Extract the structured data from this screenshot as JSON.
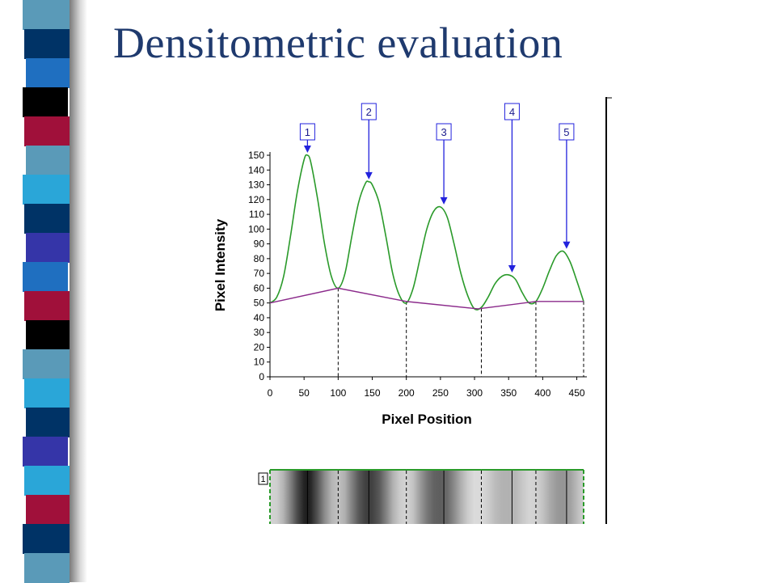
{
  "slide": {
    "title": "Densitometric evaluation"
  },
  "colors": {
    "title": "#1f3a6e",
    "profile_line": "#2a9a2a",
    "baseline_line": "#8b2a8b",
    "arrows": "#2222dd",
    "axis": "#000000"
  },
  "left_bar_colors": [
    "#5a9ab8",
    "#003366",
    "#1f6fc0",
    "#000000",
    "#a0103a",
    "#5a9ab8",
    "#2aa6d8",
    "#003366",
    "#3535a8",
    "#1f6fc0",
    "#a0103a",
    "#000000",
    "#5a9ab8",
    "#2aa6d8",
    "#003366",
    "#3535a8",
    "#2aa6d8",
    "#a0103a",
    "#003366",
    "#5a9ab8"
  ],
  "chart_data": {
    "type": "line",
    "title": "",
    "xlabel": "Pixel Position",
    "ylabel": "Pixel Intensity",
    "xlim": [
      0,
      460
    ],
    "ylim": [
      0,
      150
    ],
    "x_ticks": [
      0,
      50,
      100,
      150,
      200,
      250,
      300,
      350,
      400,
      450
    ],
    "y_ticks": [
      0,
      10,
      20,
      30,
      40,
      50,
      60,
      70,
      80,
      90,
      100,
      110,
      120,
      130,
      140,
      150
    ],
    "series": [
      {
        "role": "profile",
        "x": [
          0,
          10,
          20,
          30,
          40,
          50,
          55,
          60,
          70,
          80,
          90,
          100,
          110,
          120,
          130,
          140,
          145,
          150,
          160,
          170,
          180,
          190,
          200,
          210,
          220,
          230,
          240,
          250,
          260,
          270,
          280,
          290,
          300,
          310,
          320,
          330,
          340,
          350,
          360,
          370,
          380,
          390,
          400,
          410,
          420,
          430,
          440,
          450,
          460
        ],
        "y": [
          50,
          54,
          68,
          95,
          125,
          147,
          150,
          145,
          120,
          90,
          68,
          60,
          70,
          95,
          118,
          131,
          132,
          130,
          118,
          95,
          70,
          55,
          50,
          60,
          80,
          100,
          112,
          115,
          108,
          90,
          70,
          55,
          46,
          47,
          54,
          63,
          68,
          69,
          66,
          57,
          50,
          51,
          60,
          72,
          82,
          85,
          78,
          65,
          51
        ]
      },
      {
        "role": "baseline",
        "x": [
          0,
          100,
          200,
          305,
          390,
          460
        ],
        "y": [
          50,
          60,
          51,
          46,
          51,
          51
        ]
      }
    ],
    "dividers_x": [
      100,
      200,
      310,
      390,
      460
    ],
    "peaks": [
      {
        "label": "1",
        "x": 55,
        "y": 150
      },
      {
        "label": "2",
        "x": 145,
        "y": 132
      },
      {
        "label": "3",
        "x": 255,
        "y": 115
      },
      {
        "label": "4",
        "x": 355,
        "y": 69
      },
      {
        "label": "5",
        "x": 435,
        "y": 85
      }
    ],
    "lane": {
      "label": "1",
      "solid_lines_x": [
        55,
        145,
        255,
        355,
        435
      ],
      "dashed_lines_x": [
        100,
        200,
        310,
        390
      ]
    }
  }
}
